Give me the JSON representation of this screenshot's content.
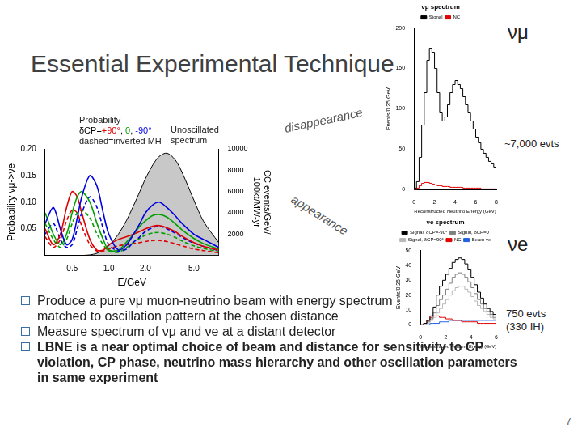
{
  "slide": {
    "title": "Essential Experimental Technique",
    "flow_labels": [
      "disappearance",
      "appearance"
    ],
    "callouts": {
      "numu": "νμ",
      "numu_events": "~7,000 evts",
      "nue": "νe",
      "nue_events": [
        "750 evts",
        "(330 IH)"
      ]
    },
    "bullets": [
      {
        "text": "Produce a pure νμ muon-neutrino beam with energy spectrum matched to oscillation pattern at the chosen distance"
      },
      {
        "text": "Measure spectrum of νμ and νe at a distant detector"
      },
      {
        "text": "LBNE is a near optimal choice of beam and distance for sensitivity to CP violation, CP phase, neutrino mass hierarchy and other oscillation parameters in same experiment",
        "bold": true
      }
    ],
    "page_number": "7"
  },
  "chart_data": [
    {
      "type": "line",
      "x_label": "E/GeV",
      "y_label": "Probability νμ->νe",
      "y2_label": [
        "CC events/GeV/",
        "100kt/MW-yr"
      ],
      "annotations": [
        {
          "text": "Probability"
        },
        {
          "parts": [
            {
              "text": "δCP=",
              "color": "#000000"
            },
            {
              "text": "+90°",
              "color": "#e00000"
            },
            {
              "text": ", ",
              "color": "#000000"
            },
            {
              "text": "0",
              "color": "#00a000"
            },
            {
              "text": ", ",
              "color": "#000000"
            },
            {
              "text": "-90°",
              "color": "#0000e0"
            }
          ]
        },
        {
          "text": "dashed=inverted MH"
        },
        {
          "text": "Unoscillated spectrum"
        }
      ],
      "log": "x",
      "grid": false,
      "xlim": [
        0.3,
        8
      ],
      "xticks": [
        0.5,
        {
          "value": 1,
          "label": "1.0"
        },
        {
          "value": 2,
          "label": "2.0"
        },
        {
          "value": 5,
          "label": "5.0"
        }
      ],
      "ylim": [
        0,
        0.2
      ],
      "yticks": [
        0.05,
        {
          "value": 0.1,
          "label": "0.10"
        },
        0.15,
        {
          "value": 0.2,
          "label": "0.20"
        }
      ],
      "y2lim": [
        0,
        10000
      ],
      "y2ticks": [
        2000,
        4000,
        6000,
        8000,
        10000
      ],
      "x": [
        0.3,
        0.35,
        0.4,
        0.45,
        0.5,
        0.55,
        0.6,
        0.7,
        0.8,
        0.9,
        1.0,
        1.2,
        1.4,
        1.6,
        1.8,
        2.0,
        2.3,
        2.6,
        3.0,
        3.5,
        4,
        5,
        6,
        8
      ],
      "series": [
        {
          "type": "area",
          "axis": "y2",
          "color": "#c8c8c8",
          "values": [
            0,
            0,
            0,
            0,
            0,
            0,
            0,
            50,
            200,
            500,
            900,
            2000,
            3300,
            4700,
            6000,
            7200,
            8500,
            9300,
            9600,
            9000,
            7800,
            5200,
            3200,
            1200
          ]
        },
        {
          "color": "#0000e0",
          "line_style": "solid",
          "values": [
            0.06,
            0.09,
            0.05,
            0.02,
            0.03,
            0.07,
            0.11,
            0.15,
            0.13,
            0.08,
            0.04,
            0.01,
            0.02,
            0.04,
            0.06,
            0.08,
            0.095,
            0.1,
            0.09,
            0.075,
            0.06,
            0.04,
            0.03,
            0.015
          ]
        },
        {
          "color": "#00a000",
          "line_style": "solid",
          "values": [
            0.08,
            0.04,
            0.02,
            0.04,
            0.08,
            0.11,
            0.12,
            0.1,
            0.06,
            0.03,
            0.01,
            0.01,
            0.025,
            0.04,
            0.055,
            0.065,
            0.075,
            0.077,
            0.072,
            0.06,
            0.048,
            0.032,
            0.022,
            0.012
          ]
        },
        {
          "color": "#e00000",
          "line_style": "solid",
          "values": [
            0.05,
            0.02,
            0.04,
            0.09,
            0.12,
            0.11,
            0.08,
            0.03,
            0.01,
            0.01,
            0.02,
            0.03,
            0.035,
            0.04,
            0.045,
            0.05,
            0.055,
            0.056,
            0.052,
            0.045,
            0.036,
            0.024,
            0.017,
            0.01
          ]
        },
        {
          "color": "#0000e0",
          "line_style": "dashed",
          "values": [
            0.04,
            0.06,
            0.03,
            0.015,
            0.02,
            0.05,
            0.08,
            0.11,
            0.09,
            0.05,
            0.02,
            0.008,
            0.012,
            0.025,
            0.035,
            0.045,
            0.052,
            0.055,
            0.05,
            0.042,
            0.034,
            0.023,
            0.017,
            0.009
          ]
        },
        {
          "color": "#00a000",
          "line_style": "dashed",
          "values": [
            0.06,
            0.03,
            0.015,
            0.03,
            0.06,
            0.08,
            0.085,
            0.07,
            0.04,
            0.02,
            0.008,
            0.006,
            0.015,
            0.025,
            0.032,
            0.038,
            0.042,
            0.043,
            0.04,
            0.034,
            0.027,
            0.018,
            0.013,
            0.007
          ]
        },
        {
          "color": "#e00000",
          "line_style": "dashed",
          "values": [
            0.035,
            0.015,
            0.03,
            0.065,
            0.085,
            0.08,
            0.055,
            0.02,
            0.008,
            0.008,
            0.012,
            0.018,
            0.02,
            0.022,
            0.024,
            0.026,
            0.028,
            0.028,
            0.026,
            0.022,
            0.018,
            0.012,
            0.009,
            0.005
          ]
        }
      ]
    },
    {
      "type": "histogram",
      "title": "νμ spectrum",
      "x_label": "Reconstructed Neutrino Energy (GeV)",
      "y_label": "Events/0.25 GeV",
      "grid": false,
      "legend": "top",
      "xlim": [
        0,
        8
      ],
      "xticks": [
        0,
        2,
        4,
        6,
        8
      ],
      "ylim": [
        0,
        200
      ],
      "yticks": [
        0,
        50,
        100,
        150,
        200
      ],
      "bins": [
        0,
        0.25,
        0.5,
        0.75,
        1,
        1.25,
        1.5,
        1.75,
        2,
        2.25,
        2.5,
        2.75,
        3,
        3.25,
        3.5,
        3.75,
        4,
        4.25,
        4.5,
        4.75,
        5,
        5.25,
        5.5,
        5.75,
        6,
        6.25,
        6.5,
        6.75,
        7,
        7.25,
        7.5,
        7.75,
        8
      ],
      "series": [
        {
          "name": "Signal",
          "color": "#000000",
          "values": [
            2,
            10,
            40,
            80,
            120,
            160,
            175,
            170,
            150,
            120,
            95,
            85,
            90,
            105,
            120,
            130,
            135,
            130,
            125,
            115,
            105,
            95,
            85,
            75,
            65,
            58,
            50,
            45,
            40,
            35,
            32,
            28
          ]
        },
        {
          "name": "NC",
          "color": "#e00000",
          "values": [
            0,
            2,
            5,
            8,
            9,
            9,
            8,
            7,
            6,
            5,
            5,
            4,
            4,
            4,
            3,
            3,
            3,
            3,
            3,
            2,
            2,
            2,
            2,
            2,
            2,
            2,
            1,
            1,
            1,
            1,
            1,
            1
          ]
        }
      ]
    },
    {
      "type": "histogram",
      "title": "νe spectrum",
      "x_label": "Reconstructed Neutrino Energy (GeV)",
      "y_label": "Events/0.25 GeV",
      "grid": false,
      "legend": "top",
      "xlim": [
        0,
        6
      ],
      "xticks": [
        0,
        2,
        4,
        6
      ],
      "ylim": [
        0,
        50
      ],
      "yticks": [
        0,
        10,
        20,
        30,
        40,
        50
      ],
      "bins": [
        0,
        0.25,
        0.5,
        0.75,
        1,
        1.25,
        1.5,
        1.75,
        2,
        2.25,
        2.5,
        2.75,
        3,
        3.25,
        3.5,
        3.75,
        4,
        4.25,
        4.5,
        4.75,
        5,
        5.25,
        5.5,
        5.75,
        6
      ],
      "series": [
        {
          "name": "Signal, δCP=-90°",
          "color": "#000000",
          "values": [
            0,
            1,
            3,
            6,
            12,
            20,
            26,
            30,
            34,
            38,
            42,
            44,
            45,
            44,
            41,
            37,
            32,
            27,
            22,
            18,
            14,
            11,
            9,
            7
          ]
        },
        {
          "name": "Signal, δCP=0",
          "color": "#808080",
          "values": [
            0,
            1,
            2,
            4,
            8,
            13,
            17,
            20,
            24,
            28,
            32,
            34,
            35,
            34,
            32,
            29,
            25,
            21,
            17,
            14,
            11,
            9,
            7,
            5
          ]
        },
        {
          "name": "Signal, δCP=90°",
          "color": "#b8b8b8",
          "values": [
            0,
            0,
            1,
            3,
            5,
            8,
            11,
            14,
            17,
            20,
            23,
            25,
            26,
            26,
            24,
            22,
            19,
            16,
            13,
            11,
            9,
            7,
            5,
            4
          ]
        },
        {
          "name": "NC",
          "color": "#e00000",
          "values": [
            0,
            1,
            3,
            5,
            6,
            6,
            5,
            5,
            4,
            4,
            3,
            3,
            3,
            2,
            2,
            2,
            2,
            2,
            1,
            1,
            1,
            1,
            1,
            1
          ]
        },
        {
          "name": "Beam νe",
          "color": "#2060e0",
          "values": [
            0,
            0,
            0,
            1,
            1,
            1,
            2,
            2,
            2,
            3,
            3,
            3,
            3,
            3,
            3,
            3,
            3,
            3,
            3,
            3,
            3,
            3,
            3,
            3
          ]
        }
      ]
    }
  ]
}
